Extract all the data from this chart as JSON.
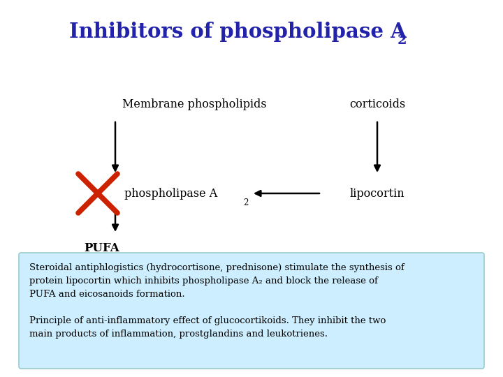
{
  "title_color": "#2222aa",
  "bg_color": "#ffffff",
  "box_bg_color": "#cceeff",
  "box_border_color": "#99cccc",
  "text_color": "#000000",
  "arrow_color": "#000000",
  "x_color": "#cc2200",
  "membrane_label": "Membrane phospholipids",
  "corticoids_label": "corticoids",
  "lipocortin_label": "lipocortin",
  "pufa_label": "PUFA",
  "box_text1": "Steroidal antiphlogistics (hydrocortisone, prednisone) stimulate the synthesis of\nprotein lipocortin which inhibits phospholipase A₂ and block the release of\nPUFA and eicosanoids formation.",
  "box_text2": "Principle of anti-inflammatory effect of glucocortikoids. They inhibit the two\nmain products of inflammation, prostglandins and leukotrienes."
}
